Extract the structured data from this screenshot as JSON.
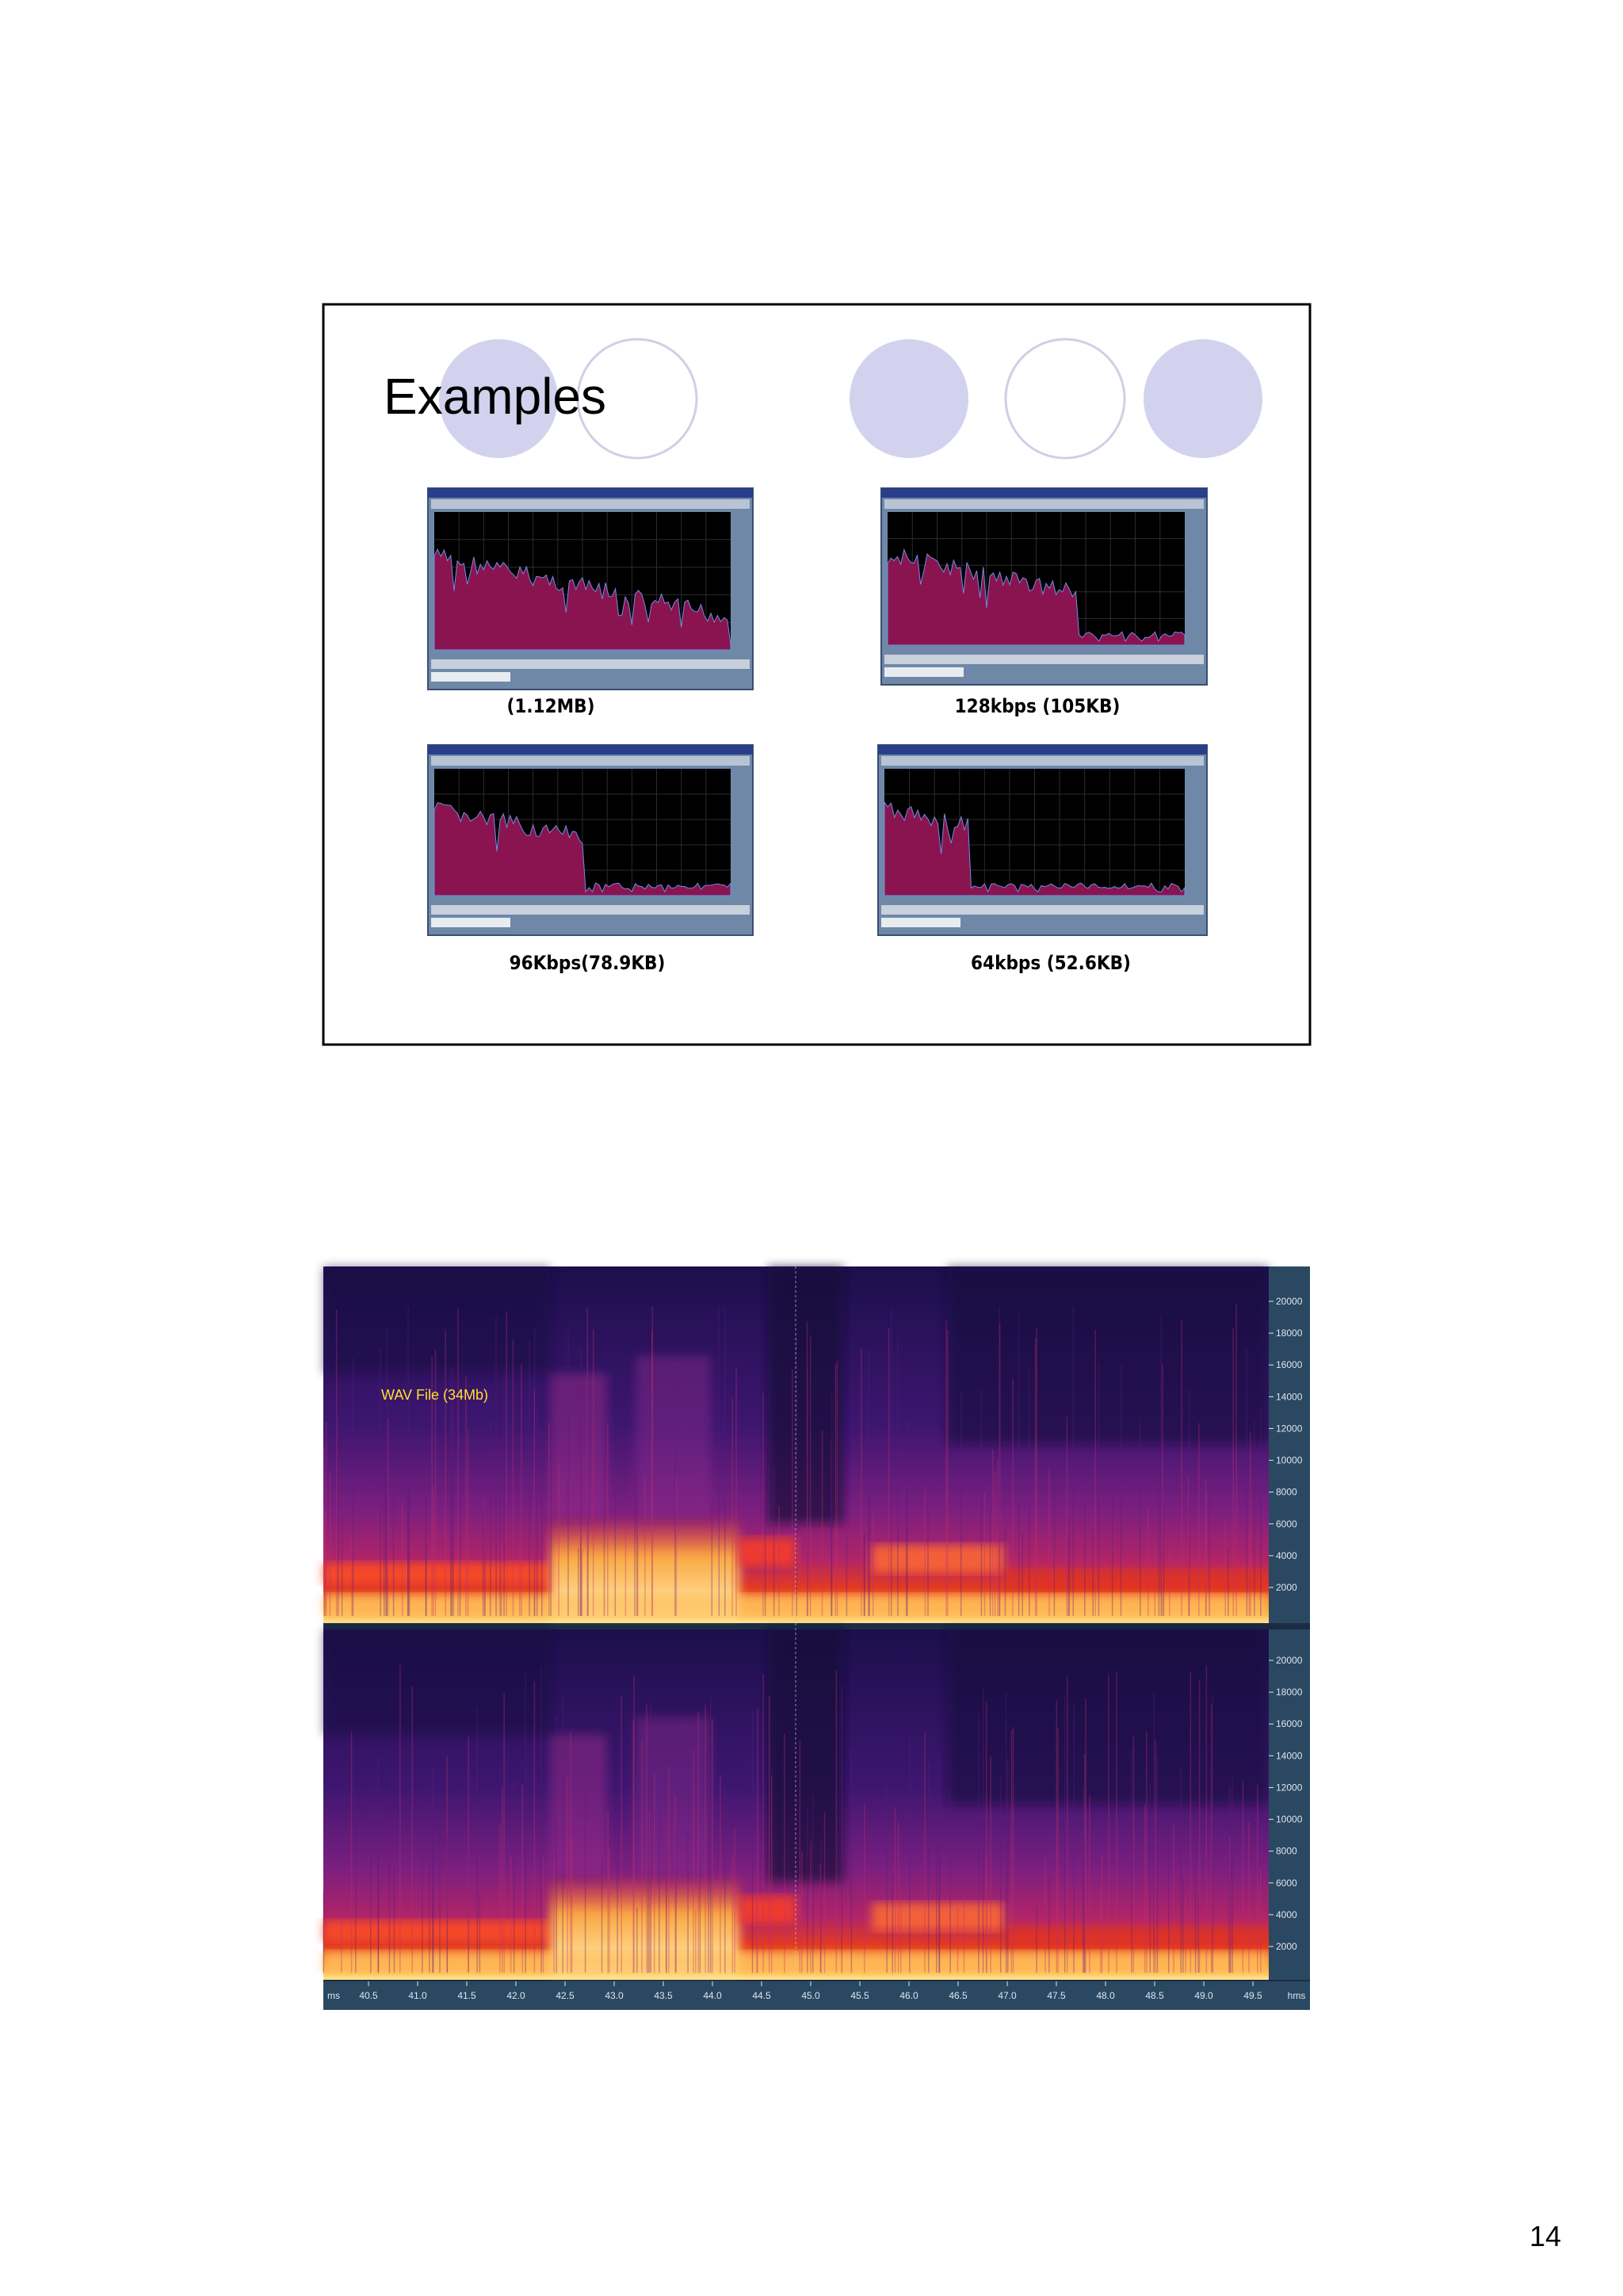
{
  "slide": {
    "title": "Examples",
    "panels": [
      {
        "caption": "(1.12MB)"
      },
      {
        "caption": "128kbps  (105KB)"
      },
      {
        "caption": "96Kbps(78.9KB)"
      },
      {
        "caption": "64kbps  (52.6KB)"
      }
    ]
  },
  "spectrogram": {
    "label": "WAV File (34Mb)",
    "frequency_ticks": [
      "20000",
      "18000",
      "16000",
      "14000",
      "12000",
      "10000",
      "8000",
      "6000",
      "4000",
      "2000"
    ],
    "time_unit_start": "ms",
    "time_ticks": [
      "40.5",
      "41.0",
      "41.5",
      "42.0",
      "42.5",
      "43.0",
      "43.5",
      "44.0",
      "44.5",
      "45.0",
      "45.5",
      "46.0",
      "46.5",
      "47.0",
      "47.5",
      "48.0",
      "48.5",
      "49.0",
      "49.5"
    ],
    "time_unit_end": "hms"
  },
  "page_number": "14"
}
